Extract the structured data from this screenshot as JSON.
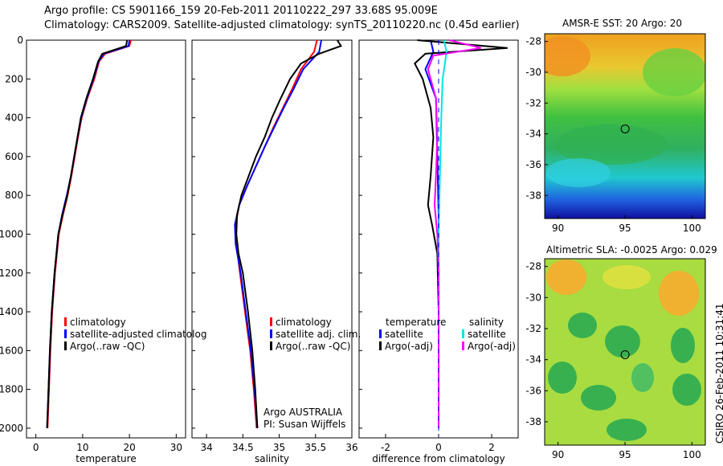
{
  "header": {
    "line1": "Argo profile: CS 5901166_159 20-Feb-2011 20110222_297 33.68S 95.009E",
    "line2": "Climatology: CARS2009. Satellite-adjusted climatology: synTS_20110220.nc (0.45d earlier)"
  },
  "colors": {
    "climatology": "#ff0000",
    "satellite": "#0000ff",
    "argo": "#000000",
    "satellite_sal": "#00e5e5",
    "argo_sal": "#ff00ff"
  },
  "chart_data": [
    {
      "type": "line",
      "name": "temperature-profile",
      "xlabel": "temperature",
      "ylabel": "",
      "xlim": [
        -2,
        32
      ],
      "ylim": [
        2050,
        0
      ],
      "xticks": [
        "0",
        "10",
        "20",
        "30"
      ],
      "yticks": [
        "0",
        "200",
        "400",
        "600",
        "800",
        "1000",
        "1200",
        "1400",
        "1600",
        "1800",
        "2000"
      ],
      "legend": [
        "climatology",
        "satellite-adjusted climatolog",
        "Argo(..raw -QC)"
      ],
      "series": [
        {
          "name": "climatology",
          "points": [
            [
              20.3,
              0
            ],
            [
              20.0,
              30
            ],
            [
              14.8,
              70
            ],
            [
              13.5,
              110
            ],
            [
              12.5,
              200
            ],
            [
              11.0,
              300
            ],
            [
              9.8,
              400
            ],
            [
              9.0,
              500
            ],
            [
              8.3,
              600
            ],
            [
              7.6,
              700
            ],
            [
              6.8,
              800
            ],
            [
              5.8,
              900
            ],
            [
              4.9,
              1000
            ],
            [
              4.1,
              1200
            ],
            [
              3.5,
              1400
            ],
            [
              3.1,
              1600
            ],
            [
              2.8,
              1800
            ],
            [
              2.5,
              2000
            ]
          ]
        },
        {
          "name": "satellite",
          "points": [
            [
              20.0,
              0
            ],
            [
              19.8,
              30
            ],
            [
              14.5,
              70
            ],
            [
              13.4,
              110
            ],
            [
              12.3,
              200
            ],
            [
              10.9,
              300
            ],
            [
              9.7,
              400
            ],
            [
              8.9,
              500
            ],
            [
              8.2,
              600
            ],
            [
              7.5,
              700
            ],
            [
              6.6,
              800
            ],
            [
              5.6,
              900
            ],
            [
              4.8,
              1000
            ],
            [
              4.0,
              1200
            ],
            [
              3.4,
              1400
            ],
            [
              3.0,
              1600
            ],
            [
              2.7,
              1800
            ],
            [
              2.4,
              2000
            ]
          ]
        },
        {
          "name": "argo",
          "points": [
            [
              19.5,
              0
            ],
            [
              19.3,
              30
            ],
            [
              14.2,
              70
            ],
            [
              13.3,
              110
            ],
            [
              12.2,
              200
            ],
            [
              10.8,
              300
            ],
            [
              9.6,
              400
            ],
            [
              8.9,
              500
            ],
            [
              8.2,
              600
            ],
            [
              7.5,
              700
            ],
            [
              6.7,
              800
            ],
            [
              5.7,
              900
            ],
            [
              4.8,
              1000
            ],
            [
              4.0,
              1200
            ],
            [
              3.4,
              1400
            ],
            [
              3.0,
              1600
            ],
            [
              2.7,
              1800
            ],
            [
              2.4,
              2000
            ]
          ]
        }
      ]
    },
    {
      "type": "line",
      "name": "salinity-profile",
      "xlabel": "salinity",
      "xlim": [
        33.8,
        36.0
      ],
      "ylim": [
        2050,
        0
      ],
      "xticks": [
        "34",
        "34.5",
        "35",
        "35.5",
        "36"
      ],
      "legend": [
        "climatology",
        "satellite adj. clim.",
        "Argo(..raw -QC)"
      ],
      "annotation": [
        "Argo AUSTRALIA",
        "PI: Susan Wijffels"
      ],
      "series": [
        {
          "name": "climatology",
          "points": [
            [
              35.52,
              0
            ],
            [
              35.48,
              60
            ],
            [
              35.3,
              150
            ],
            [
              35.18,
              250
            ],
            [
              35.05,
              350
            ],
            [
              34.92,
              450
            ],
            [
              34.8,
              550
            ],
            [
              34.68,
              650
            ],
            [
              34.56,
              750
            ],
            [
              34.45,
              850
            ],
            [
              34.4,
              950
            ],
            [
              34.41,
              1050
            ],
            [
              34.46,
              1200
            ],
            [
              34.53,
              1400
            ],
            [
              34.6,
              1600
            ],
            [
              34.65,
              1800
            ],
            [
              34.69,
              2000
            ]
          ]
        },
        {
          "name": "satellite",
          "points": [
            [
              35.58,
              0
            ],
            [
              35.55,
              60
            ],
            [
              35.33,
              150
            ],
            [
              35.2,
              250
            ],
            [
              35.06,
              350
            ],
            [
              34.93,
              450
            ],
            [
              34.8,
              550
            ],
            [
              34.68,
              650
            ],
            [
              34.56,
              750
            ],
            [
              34.45,
              850
            ],
            [
              34.39,
              950
            ],
            [
              34.4,
              1050
            ],
            [
              34.47,
              1200
            ],
            [
              34.54,
              1400
            ],
            [
              34.61,
              1600
            ],
            [
              34.66,
              1800
            ],
            [
              34.7,
              2000
            ]
          ]
        },
        {
          "name": "argo",
          "points": [
            [
              35.8,
              0
            ],
            [
              35.85,
              30
            ],
            [
              35.55,
              70
            ],
            [
              35.3,
              120
            ],
            [
              35.15,
              200
            ],
            [
              35.02,
              300
            ],
            [
              34.9,
              400
            ],
            [
              34.8,
              500
            ],
            [
              34.68,
              600
            ],
            [
              34.58,
              700
            ],
            [
              34.48,
              800
            ],
            [
              34.42,
              900
            ],
            [
              34.41,
              1000
            ],
            [
              34.44,
              1100
            ],
            [
              34.5,
              1200
            ],
            [
              34.57,
              1400
            ],
            [
              34.63,
              1600
            ],
            [
              34.67,
              1800
            ],
            [
              34.7,
              2000
            ]
          ]
        }
      ]
    },
    {
      "type": "line",
      "name": "difference-profile",
      "xlabel": "difference from climatology",
      "xlim": [
        -3.0,
        3.0
      ],
      "ylim": [
        2050,
        0
      ],
      "xticks": [
        "-2",
        "0",
        "2"
      ],
      "legend_titles": [
        "temperature",
        "salinity"
      ],
      "legend": [
        "satellite",
        "Argo(-adj)",
        "satellite",
        "Argo(-adj)"
      ],
      "series": [
        {
          "name": "temperature satellite",
          "points": [
            [
              -0.3,
              0
            ],
            [
              -0.2,
              60
            ],
            [
              -0.5,
              150
            ],
            [
              -0.1,
              300
            ],
            [
              -0.05,
              600
            ],
            [
              0,
              900
            ],
            [
              0,
              1200
            ],
            [
              0,
              1600
            ],
            [
              0,
              2000
            ]
          ]
        },
        {
          "name": "temperature Argo(-adj)",
          "points": [
            [
              -0.8,
              0
            ],
            [
              2.6,
              40
            ],
            [
              -0.5,
              70
            ],
            [
              -0.9,
              120
            ],
            [
              -0.6,
              200
            ],
            [
              -0.3,
              350
            ],
            [
              -0.2,
              500
            ],
            [
              -0.3,
              700
            ],
            [
              -0.4,
              850
            ],
            [
              -0.25,
              950
            ],
            [
              -0.05,
              1100
            ],
            [
              0,
              1400
            ],
            [
              0,
              2000
            ]
          ]
        },
        {
          "name": "salinity satellite",
          "points": [
            [
              0.2,
              0
            ],
            [
              0.3,
              60
            ],
            [
              0.15,
              200
            ],
            [
              0.1,
              400
            ],
            [
              0.05,
              700
            ],
            [
              0,
              1000
            ],
            [
              0,
              2000
            ]
          ]
        },
        {
          "name": "salinity Argo(-adj)",
          "points": [
            [
              0.4,
              0
            ],
            [
              1.6,
              40
            ],
            [
              -0.2,
              80
            ],
            [
              -0.4,
              150
            ],
            [
              -0.1,
              300
            ],
            [
              -0.05,
              500
            ],
            [
              -0.1,
              700
            ],
            [
              -0.15,
              850
            ],
            [
              -0.05,
              1000
            ],
            [
              0,
              1200
            ],
            [
              0,
              2000
            ]
          ]
        }
      ]
    },
    {
      "type": "heatmap",
      "name": "amsre-sst-map",
      "title": "AMSR-E SST: 20 Argo: 20",
      "xticks": [
        "90",
        "95",
        "100"
      ],
      "yticks": [
        "-28",
        "-30",
        "-32",
        "-34",
        "-36",
        "-38"
      ],
      "xlim": [
        89,
        101
      ],
      "ylim": [
        -39.5,
        -27.5
      ],
      "marker": [
        95.009,
        -33.68
      ]
    },
    {
      "type": "heatmap",
      "name": "altimetric-sla-map",
      "title": "Altimetric SLA: -0.0025 Argo: 0.029",
      "xticks": [
        "90",
        "95",
        "100"
      ],
      "yticks": [
        "-28",
        "-30",
        "-32",
        "-34",
        "-36",
        "-38"
      ],
      "xlim": [
        89,
        101
      ],
      "ylim": [
        -39.5,
        -27.5
      ],
      "marker": [
        95.009,
        -33.68
      ]
    }
  ],
  "side_label": "CSIRO 26-Feb-2011 10:31:41"
}
